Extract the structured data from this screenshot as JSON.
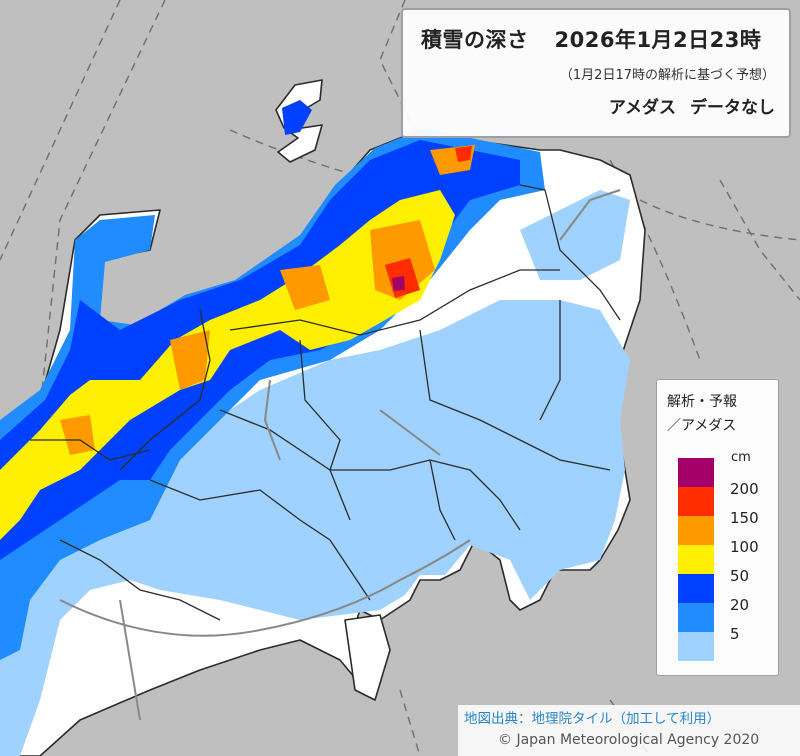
{
  "title": {
    "element": "積雪の深さ",
    "datetime": "2026年1月2日23時",
    "subtitle": "（1月2日17時の解析に基づく予想）",
    "amedas_label": "アメダス",
    "amedas_status": "データなし"
  },
  "legend": {
    "line1": "解析・予報",
    "line2": "／アメダス",
    "unit": "cm",
    "items": [
      {
        "label": "200",
        "color": "#a4006a"
      },
      {
        "label": "150",
        "color": "#ff2c00"
      },
      {
        "label": "100",
        "color": "#ff9900"
      },
      {
        "label": "50",
        "color": "#ffef00"
      },
      {
        "label": "20",
        "color": "#0041ff"
      },
      {
        "label": "5",
        "color": "#218cff"
      },
      {
        "label": "",
        "color": "#a0d2ff"
      }
    ]
  },
  "map_colors": {
    "sea": "#bfbfbf",
    "land_no_snow": "#ffffff",
    "boundary": "#2b2b2b",
    "graticule": "#6e6e6e"
  },
  "credits": {
    "source": "地図出典：地理院タイル（加工して利用）",
    "copyright": "© Japan Meteorological Agency 2020"
  }
}
